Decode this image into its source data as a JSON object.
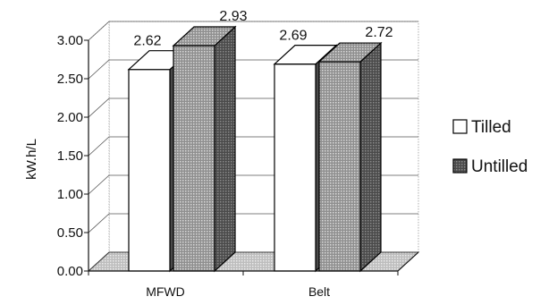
{
  "chart_data": {
    "type": "bar",
    "title": "",
    "xlabel": "",
    "ylabel": "kW.h/L",
    "ylim": [
      0,
      3
    ],
    "yticks": [
      "0.00",
      "0.50",
      "1.00",
      "1.50",
      "2.00",
      "2.50",
      "3.00"
    ],
    "categories": [
      "MFWD",
      "Belt"
    ],
    "series": [
      {
        "name": "Tilled",
        "values": [
          2.62,
          2.69
        ],
        "value_labels": [
          "2.62",
          "2.69"
        ],
        "color": "#ffffff"
      },
      {
        "name": "Untilled",
        "values": [
          2.93,
          2.72
        ],
        "value_labels": [
          "2.93",
          "2.72"
        ],
        "color": "#a9a9a9"
      }
    ],
    "grid": true,
    "legend": "right",
    "style": "3d"
  }
}
